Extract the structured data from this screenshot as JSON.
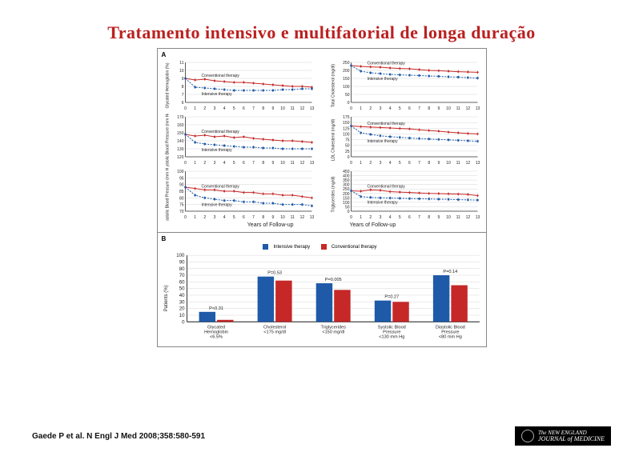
{
  "title": "Tratamento intensivo e multifatorial de longa duração",
  "citation": "Gaede P et al. N Engl J Med 2008;358:580-591",
  "journal": {
    "line1": "The NEW ENGLAND",
    "line2": "JOURNAL of MEDICINE"
  },
  "colors": {
    "conventional": "#c62828",
    "intensive": "#1e5aa8",
    "grid": "#d7d7d7",
    "axis": "#333",
    "bg": "#ffffff",
    "text": "#222"
  },
  "panel_a": {
    "label": "A",
    "x_ticks": [
      0,
      1,
      2,
      3,
      4,
      5,
      6,
      7,
      8,
      9,
      10,
      11,
      12,
      13
    ],
    "x_axis_label": "Years of Follow-up",
    "charts": [
      {
        "ylabel": "Glycated Hemoglobin (%)",
        "ylim": [
          6,
          11
        ],
        "yticks": [
          6,
          7,
          8,
          9,
          10,
          11
        ],
        "conv": [
          9.0,
          8.8,
          8.9,
          8.7,
          8.6,
          8.5,
          8.5,
          8.4,
          8.3,
          8.2,
          8.1,
          8.0,
          8.0,
          7.9
        ],
        "int": [
          9.0,
          7.9,
          7.8,
          7.7,
          7.6,
          7.5,
          7.5,
          7.5,
          7.5,
          7.5,
          7.6,
          7.6,
          7.7,
          7.7
        ],
        "inline": {
          "conv": "Conventional therapy",
          "int": "Intensive therapy"
        }
      },
      {
        "ylabel": "Total Cholesterol (mg/dl)",
        "ylim": [
          0,
          250
        ],
        "yticks": [
          0,
          50,
          100,
          150,
          200,
          250
        ],
        "conv": [
          230,
          225,
          222,
          220,
          215,
          212,
          210,
          205,
          200,
          198,
          195,
          192,
          190,
          188
        ],
        "int": [
          230,
          195,
          185,
          180,
          175,
          172,
          170,
          168,
          165,
          163,
          160,
          158,
          155,
          152
        ],
        "inline": {
          "conv": "Conventional therapy",
          "int": "Intensive therapy"
        }
      },
      {
        "ylabel": "Systolic Blood Pressure (mm Hg)",
        "ylim": [
          120,
          170
        ],
        "yticks": [
          120,
          130,
          140,
          150,
          160,
          170
        ],
        "conv": [
          148,
          146,
          147,
          145,
          146,
          144,
          145,
          143,
          142,
          141,
          140,
          140,
          139,
          138
        ],
        "int": [
          148,
          138,
          136,
          135,
          134,
          133,
          132,
          132,
          131,
          131,
          130,
          130,
          130,
          130
        ],
        "inline": {
          "conv": "Conventional therapy",
          "int": "Intensive therapy"
        }
      },
      {
        "ylabel": "LDL Cholesterol (mg/dl)",
        "ylim": [
          0,
          175
        ],
        "yticks": [
          0,
          25,
          50,
          75,
          100,
          125,
          150,
          175
        ],
        "conv": [
          135,
          132,
          130,
          128,
          126,
          124,
          122,
          118,
          115,
          112,
          108,
          105,
          102,
          100
        ],
        "int": [
          135,
          105,
          98,
          92,
          88,
          85,
          82,
          80,
          78,
          76,
          74,
          72,
          70,
          68
        ],
        "inline": {
          "conv": "Conventional therapy",
          "int": "Intensive therapy"
        }
      },
      {
        "ylabel": "Diastolic Blood Pressure (mm Hg)",
        "ylim": [
          70,
          100
        ],
        "yticks": [
          70,
          75,
          80,
          85,
          90,
          95,
          100
        ],
        "conv": [
          88,
          87,
          86,
          86,
          85,
          85,
          84,
          84,
          83,
          83,
          82,
          82,
          81,
          80
        ],
        "int": [
          88,
          82,
          80,
          79,
          78,
          78,
          77,
          77,
          76,
          76,
          75,
          75,
          75,
          74
        ],
        "inline": {
          "conv": "Conventional therapy",
          "int": "Intensive therapy"
        }
      },
      {
        "ylabel": "Triglycerides (mg/dl)",
        "ylim": [
          0,
          450
        ],
        "yticks": [
          0,
          50,
          100,
          150,
          200,
          250,
          300,
          350,
          400,
          450
        ],
        "conv": [
          230,
          225,
          240,
          235,
          220,
          215,
          210,
          205,
          200,
          198,
          195,
          192,
          188,
          175
        ],
        "int": [
          230,
          165,
          155,
          150,
          148,
          145,
          142,
          140,
          138,
          135,
          133,
          130,
          128,
          125
        ],
        "inline": {
          "conv": "Conventional therapy",
          "int": "Intensive therapy"
        }
      }
    ]
  },
  "panel_b": {
    "label": "B",
    "ylabel": "Patients (%)",
    "ylim": [
      0,
      100
    ],
    "yticks": [
      0,
      10,
      20,
      30,
      40,
      50,
      60,
      70,
      80,
      90,
      100
    ],
    "legend": {
      "int": "Intensive therapy",
      "conv": "Conventional therapy"
    },
    "groups": [
      {
        "label": "Glycated\\nHemoglobin\\n<6.5%",
        "int": 15,
        "conv": 3,
        "p": "P<0.31"
      },
      {
        "label": "Cholesterol\\n<175 mg/dl",
        "int": 68,
        "conv": 62,
        "p": "P=0.53"
      },
      {
        "label": "Triglycerides\\n<150 mg/dl",
        "int": 58,
        "conv": 48,
        "p": "P=0.005"
      },
      {
        "label": "Systolic Blood\\nPressure\\n<130 mm Hg",
        "int": 32,
        "conv": 30,
        "p": "P=0.27"
      },
      {
        "label": "Diastolic Blood\\nPressure\\n<80 mm Hg",
        "int": 70,
        "conv": 55,
        "p": "P=0.14"
      }
    ]
  }
}
